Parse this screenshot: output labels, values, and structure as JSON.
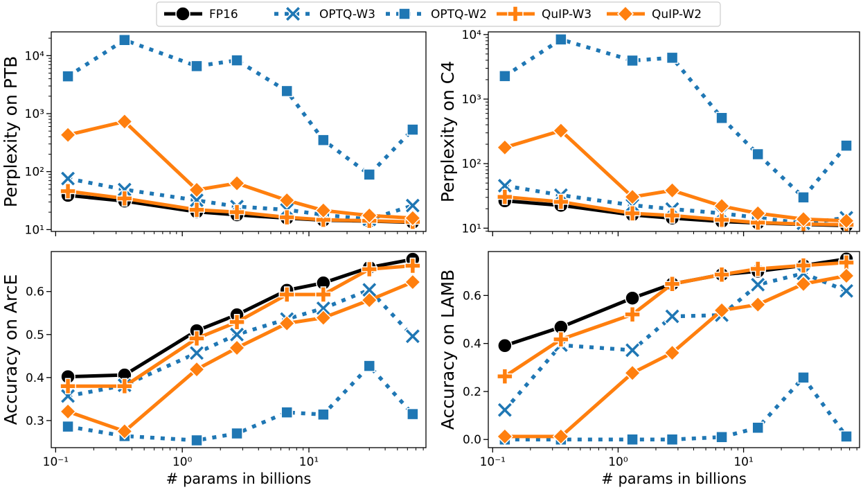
{
  "legend": {
    "placement": "top-center",
    "entries": [
      {
        "name": "FP16",
        "color": "#000000",
        "marker": "circle",
        "line": "solid"
      },
      {
        "name": "OPTQ-W3",
        "color": "#1f77b4",
        "marker": "x",
        "line": "dotted"
      },
      {
        "name": "OPTQ-W2",
        "color": "#1f77b4",
        "marker": "square",
        "line": "dotted"
      },
      {
        "name": "QuIP-W3",
        "color": "#ff7f0e",
        "marker": "plus",
        "line": "solid"
      },
      {
        "name": "QuIP-W2",
        "color": "#ff7f0e",
        "marker": "diamond",
        "line": "solid"
      }
    ]
  },
  "chart_data": [
    {
      "type": "line",
      "position": "top-left",
      "ylabel": "Perplexity on PTB",
      "xlabel": "",
      "xscale": "log",
      "yscale": "log",
      "xlim": [
        0.0923,
        84
      ],
      "ylim": [
        9.3,
        25700
      ],
      "x": [
        0.125,
        0.35,
        1.3,
        2.7,
        6.7,
        13,
        30,
        66
      ],
      "xticks": [],
      "yticks": [
        {
          "value": 10,
          "label": "10¹"
        },
        {
          "value": 100,
          "label": "10²"
        },
        {
          "value": 1000,
          "label": "10³"
        },
        {
          "value": 10000,
          "label": "10⁴"
        }
      ],
      "series": [
        {
          "name": "FP16",
          "values": [
            38.99,
            31.08,
            20.29,
            17.97,
            15.77,
            14.52,
            14.04,
            13.36
          ]
        },
        {
          "name": "OPTQ-W3",
          "values": [
            76,
            49,
            32,
            25,
            22,
            18,
            15,
            26
          ]
        },
        {
          "name": "OPTQ-W2",
          "values": [
            4400,
            18600,
            6600,
            8300,
            2450,
            350,
            89,
            530
          ]
        },
        {
          "name": "QuIP-W3",
          "values": [
            46,
            34.5,
            22,
            20,
            16.3,
            14.8,
            14.2,
            13.6
          ]
        },
        {
          "name": "QuIP-W2",
          "values": [
            430,
            730,
            48.5,
            63,
            32,
            21.4,
            17.5,
            15.8
          ]
        }
      ]
    },
    {
      "type": "line",
      "position": "top-right",
      "ylabel": "Perplexity on C4",
      "xlabel": "",
      "xscale": "log",
      "yscale": "log",
      "xlim": [
        0.0923,
        84
      ],
      "ylim": [
        8.9,
        11000
      ],
      "x": [
        0.125,
        0.35,
        1.3,
        2.7,
        6.7,
        13,
        30,
        66
      ],
      "xticks": [],
      "yticks": [
        {
          "value": 10,
          "label": "10¹"
        },
        {
          "value": 100,
          "label": "10²"
        },
        {
          "value": 1000,
          "label": "10³"
        },
        {
          "value": 10000,
          "label": "10⁴"
        }
      ],
      "series": [
        {
          "name": "FP16",
          "values": [
            26.56,
            22.59,
            16.07,
            14.34,
            12.71,
            12.06,
            11.44,
            10.99
          ]
        },
        {
          "name": "OPTQ-W3",
          "values": [
            45.5,
            32.5,
            22.7,
            19.8,
            17,
            14.5,
            11.9,
            14.5
          ]
        },
        {
          "name": "OPTQ-W2",
          "values": [
            2270,
            8400,
            3950,
            4370,
            510,
            140,
            30,
            190
          ]
        },
        {
          "name": "QuIP-W3",
          "values": [
            30.5,
            25.6,
            17,
            15.7,
            13.5,
            12.2,
            11.6,
            11.3
          ]
        },
        {
          "name": "QuIP-W2",
          "values": [
            178,
            324,
            30.5,
            38.5,
            22,
            17,
            13.8,
            13
          ]
        }
      ]
    },
    {
      "type": "line",
      "position": "bottom-left",
      "ylabel": "Accuracy on ArcE",
      "xlabel": "# params in billions",
      "xscale": "log",
      "yscale": "linear",
      "xlim": [
        0.0923,
        84
      ],
      "ylim": [
        0.237,
        0.693
      ],
      "x": [
        0.125,
        0.35,
        1.3,
        2.7,
        6.7,
        13,
        30,
        66
      ],
      "xticks": [
        {
          "value": 0.1,
          "label": "10⁻¹"
        },
        {
          "value": 1,
          "label": "10⁰"
        },
        {
          "value": 10,
          "label": "10¹"
        }
      ],
      "yticks": [
        {
          "value": 0.3,
          "label": "0.3"
        },
        {
          "value": 0.4,
          "label": "0.4"
        },
        {
          "value": 0.5,
          "label": "0.5"
        },
        {
          "value": 0.6,
          "label": "0.6"
        }
      ],
      "series": [
        {
          "name": "FP16",
          "values": [
            0.402,
            0.406,
            0.509,
            0.546,
            0.603,
            0.62,
            0.656,
            0.675
          ]
        },
        {
          "name": "OPTQ-W3",
          "values": [
            0.357,
            0.382,
            0.457,
            0.5,
            0.536,
            0.561,
            0.604,
            0.496
          ]
        },
        {
          "name": "OPTQ-W2",
          "values": [
            0.286,
            0.264,
            0.254,
            0.27,
            0.319,
            0.314,
            0.427,
            0.315
          ]
        },
        {
          "name": "QuIP-W3",
          "values": [
            0.38,
            0.38,
            0.491,
            0.529,
            0.593,
            0.593,
            0.652,
            0.66
          ]
        },
        {
          "name": "QuIP-W2",
          "values": [
            0.321,
            0.275,
            0.419,
            0.469,
            0.526,
            0.539,
            0.58,
            0.622
          ]
        }
      ]
    },
    {
      "type": "line",
      "position": "bottom-right",
      "ylabel": "Accuracy on LAMB",
      "xlabel": "# params in billions",
      "xscale": "log",
      "yscale": "linear",
      "xlim": [
        0.0923,
        84
      ],
      "ylim": [
        -0.034,
        0.783
      ],
      "x": [
        0.125,
        0.35,
        1.3,
        2.7,
        6.7,
        13,
        30,
        66
      ],
      "xticks": [
        {
          "value": 0.1,
          "label": "10⁻¹"
        },
        {
          "value": 1,
          "label": "10⁰"
        },
        {
          "value": 10,
          "label": "10¹"
        }
      ],
      "yticks": [
        {
          "value": 0.0,
          "label": "0.0"
        },
        {
          "value": 0.2,
          "label": "0.2"
        },
        {
          "value": 0.4,
          "label": "0.4"
        },
        {
          "value": 0.6,
          "label": "0.6"
        }
      ],
      "series": [
        {
          "name": "FP16",
          "values": [
            0.391,
            0.468,
            0.589,
            0.648,
            0.687,
            0.701,
            0.725,
            0.752
          ]
        },
        {
          "name": "OPTQ-W3",
          "values": [
            0.123,
            0.393,
            0.372,
            0.513,
            0.518,
            0.645,
            0.692,
            0.619
          ]
        },
        {
          "name": "OPTQ-W2",
          "values": [
            0.0,
            0.0,
            0.0,
            0.0,
            0.01,
            0.049,
            0.258,
            0.0125
          ]
        },
        {
          "name": "QuIP-W3",
          "values": [
            0.263,
            0.417,
            0.521,
            0.648,
            0.687,
            0.711,
            0.725,
            0.737
          ]
        },
        {
          "name": "QuIP-W2",
          "values": [
            0.0125,
            0.0125,
            0.277,
            0.361,
            0.538,
            0.562,
            0.648,
            0.682
          ]
        }
      ]
    }
  ]
}
